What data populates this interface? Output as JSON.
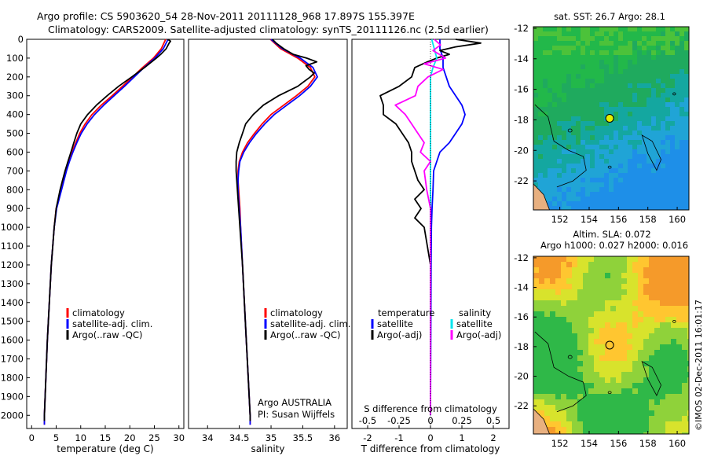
{
  "header": {
    "line1": "Argo profile: CS 5903620_54 28-Nov-2011 20111128_968 17.897S 155.397E",
    "line2": "Climatology: CARS2009. Satellite-adjusted climatology: synTS_20111126.nc (2.5d earlier)"
  },
  "colors": {
    "climatology": "#ff0000",
    "satellite": "#0000ff",
    "argo": "#000000",
    "salinity_sat": "#00e5ee",
    "salinity_argo": "#ff00ff"
  },
  "depth_axis": {
    "ticks": [
      0,
      100,
      200,
      300,
      400,
      500,
      600,
      700,
      800,
      900,
      1000,
      1100,
      1200,
      1300,
      1400,
      1500,
      1600,
      1700,
      1800,
      1900,
      2000
    ],
    "range": [
      0,
      2070
    ]
  },
  "legend_common": {
    "climatology": "climatology",
    "satellite": "satellite-adj. clim.",
    "argo": "Argo(..raw -QC)"
  },
  "chart_data": [
    {
      "id": "temperature",
      "type": "line",
      "xlabel": "temperature (deg C)",
      "xlim": [
        -1,
        31
      ],
      "xticks": [
        0,
        5,
        10,
        15,
        20,
        25,
        30
      ],
      "ylim": [
        0,
        2070
      ],
      "y_inverted": true,
      "series": [
        {
          "name": "climatology",
          "color": "#ff0000",
          "depth": [
            0,
            50,
            100,
            150,
            200,
            250,
            300,
            350,
            400,
            450,
            500,
            550,
            600,
            650,
            700,
            800,
            900,
            1000,
            1200,
            1400,
            1600,
            1800,
            2000,
            2050
          ],
          "values": [
            27.3,
            26.4,
            24.8,
            22.6,
            20.6,
            18.5,
            16.4,
            14.2,
            12.3,
            10.9,
            9.8,
            9.0,
            8.2,
            7.6,
            7.0,
            6.0,
            5.0,
            4.6,
            4.0,
            3.6,
            3.2,
            2.9,
            2.6,
            2.6
          ]
        },
        {
          "name": "satellite-adj. clim.",
          "color": "#0000ff",
          "depth": [
            0,
            50,
            100,
            150,
            200,
            250,
            300,
            350,
            400,
            450,
            500,
            550,
            600,
            650,
            700,
            800,
            900,
            1000,
            1200,
            1400,
            1600,
            1800,
            2000,
            2050
          ],
          "values": [
            27.8,
            26.8,
            25.1,
            22.9,
            20.9,
            18.9,
            16.8,
            14.7,
            12.8,
            11.3,
            10.1,
            9.2,
            8.4,
            7.7,
            7.1,
            6.1,
            5.1,
            4.6,
            4.0,
            3.6,
            3.2,
            2.9,
            2.6,
            2.6
          ]
        },
        {
          "name": "Argo(..raw -QC)",
          "color": "#000000",
          "depth": [
            0,
            10,
            20,
            50,
            80,
            100,
            150,
            200,
            250,
            300,
            350,
            400,
            450,
            500,
            550,
            600,
            650,
            700,
            750,
            800,
            850,
            900,
            950,
            1000,
            1200,
            1400,
            1600,
            1800,
            2000,
            2030
          ],
          "values": [
            27.7,
            28.3,
            28.0,
            27.4,
            26.3,
            25.4,
            23.0,
            20.4,
            17.7,
            15.4,
            13.2,
            11.4,
            10.0,
            9.2,
            8.6,
            8.0,
            7.4,
            6.8,
            6.3,
            5.8,
            5.4,
            5.0,
            4.8,
            4.6,
            4.0,
            3.6,
            3.2,
            2.9,
            2.6,
            2.6
          ]
        }
      ]
    },
    {
      "id": "salinity",
      "type": "line",
      "xlabel": "salinity",
      "xlim": [
        33.7,
        36.2
      ],
      "xticks": [
        34,
        34.5,
        35,
        35.5,
        36
      ],
      "xtick_labels": [
        "34",
        "34.5",
        "35",
        "35.5",
        "36"
      ],
      "ylim": [
        0,
        2070
      ],
      "y_inverted": true,
      "series": [
        {
          "name": "climatology",
          "color": "#ff0000",
          "depth": [
            0,
            50,
            100,
            150,
            200,
            250,
            300,
            350,
            400,
            450,
            500,
            550,
            600,
            650,
            700,
            750,
            800,
            900,
            1000,
            1200,
            1400,
            1600,
            1800,
            2000,
            2050
          ],
          "values": [
            34.99,
            35.15,
            35.42,
            35.62,
            35.69,
            35.58,
            35.4,
            35.2,
            35.0,
            34.86,
            34.74,
            34.63,
            34.55,
            34.5,
            34.48,
            34.48,
            34.49,
            34.51,
            34.52,
            34.55,
            34.58,
            34.61,
            34.64,
            34.67,
            34.67
          ]
        },
        {
          "name": "satellite-adj. clim.",
          "color": "#0000ff",
          "depth": [
            0,
            50,
            100,
            150,
            200,
            250,
            300,
            350,
            400,
            450,
            500,
            550,
            600,
            650,
            700,
            750,
            800,
            900,
            1000,
            1200,
            1400,
            1600,
            1800,
            2000,
            2050
          ],
          "values": [
            35.0,
            35.18,
            35.46,
            35.66,
            35.73,
            35.62,
            35.45,
            35.25,
            35.05,
            34.9,
            34.77,
            34.66,
            34.57,
            34.51,
            34.49,
            34.48,
            34.48,
            34.5,
            34.52,
            34.55,
            34.58,
            34.61,
            34.64,
            34.67,
            34.67
          ]
        },
        {
          "name": "Argo(..raw -QC)",
          "color": "#000000",
          "depth": [
            0,
            20,
            50,
            80,
            100,
            120,
            140,
            160,
            180,
            200,
            250,
            300,
            350,
            400,
            450,
            500,
            550,
            600,
            650,
            700,
            750,
            800,
            850,
            900,
            1000,
            1200,
            1400,
            1600,
            1800,
            2000,
            2030
          ],
          "values": [
            35.02,
            35.08,
            35.2,
            35.35,
            35.56,
            35.72,
            35.55,
            35.6,
            35.68,
            35.62,
            35.42,
            35.12,
            34.88,
            34.72,
            34.6,
            34.55,
            34.5,
            34.46,
            34.45,
            34.45,
            34.46,
            34.47,
            34.48,
            34.49,
            34.51,
            34.55,
            34.58,
            34.61,
            34.64,
            34.67,
            34.67
          ]
        }
      ]
    },
    {
      "id": "differences",
      "type": "line",
      "xlabel_top": "S difference from climatology",
      "xlabel": "T difference from climatology",
      "top_ticks": [
        -0.5,
        -0.25,
        0,
        0.25,
        0.5
      ],
      "top_tick_labels": [
        "-0.5",
        "-0.25",
        "0",
        "0.25",
        "0.5"
      ],
      "xlim": [
        -2.5,
        2.5
      ],
      "xticks": [
        -2,
        -1,
        0,
        1,
        2
      ],
      "ylim": [
        0,
        2070
      ],
      "y_inverted": true,
      "legend": {
        "temperature_title": "temperature",
        "salinity_title": "salinity",
        "t_sat": "satellite",
        "t_argo": "Argo(-adj)",
        "s_sat": "satellite",
        "s_argo": "Argo(-adj)"
      },
      "series": [
        {
          "name": "temperature satellite",
          "color": "#0000ff",
          "units": "degC",
          "depth": [
            0,
            50,
            100,
            150,
            200,
            250,
            300,
            350,
            400,
            450,
            500,
            550,
            600,
            650,
            700,
            800,
            900,
            1000,
            1200,
            1600,
            2000
          ],
          "values": [
            0.3,
            0.3,
            0.4,
            0.4,
            0.5,
            0.6,
            0.8,
            1.0,
            1.1,
            1.0,
            0.8,
            0.6,
            0.3,
            0.2,
            0.1,
            0.08,
            0.05,
            0.03,
            0.02,
            0.01,
            0.0
          ]
        },
        {
          "name": "temperature Argo(-adj)",
          "color": "#000000",
          "units": "degC",
          "depth": [
            0,
            20,
            40,
            60,
            80,
            100,
            120,
            150,
            200,
            250,
            300,
            350,
            400,
            450,
            500,
            550,
            600,
            650,
            700,
            750,
            800,
            850,
            900,
            950,
            1000,
            1100,
            1200,
            1400,
            1600,
            1800,
            2000
          ],
          "values": [
            0.8,
            1.6,
            0.8,
            0.3,
            0.6,
            0.2,
            -0.1,
            -0.5,
            -0.6,
            -1.0,
            -1.6,
            -1.5,
            -1.5,
            -1.1,
            -0.9,
            -0.7,
            -0.6,
            -0.6,
            -0.5,
            -0.4,
            -0.2,
            -0.5,
            -0.3,
            -0.5,
            -0.2,
            -0.1,
            0.0,
            0.0,
            0.0,
            0.0,
            0.0
          ]
        },
        {
          "name": "salinity satellite",
          "color": "#00e5ee",
          "units": "psu",
          "depth": [
            0,
            50,
            100,
            150,
            200,
            250,
            300,
            350,
            400,
            500,
            600,
            700,
            800,
            1000,
            1500,
            2000
          ],
          "values": [
            0.01,
            0.03,
            0.05,
            0.02,
            0.0,
            0.0,
            0.0,
            0.0,
            0.0,
            0.0,
            0.0,
            0.0,
            0.0,
            0.0,
            0.0,
            0.0
          ]
        },
        {
          "name": "salinity Argo(-adj)",
          "color": "#ff00ff",
          "units": "psu",
          "depth": [
            0,
            30,
            60,
            100,
            130,
            160,
            200,
            250,
            300,
            350,
            400,
            450,
            500,
            550,
            600,
            650,
            700,
            800,
            900,
            1000,
            1200,
            1500,
            2000
          ],
          "values": [
            0.03,
            0.08,
            0.02,
            0.12,
            -0.05,
            0.1,
            -0.02,
            -0.1,
            -0.12,
            -0.28,
            -0.2,
            -0.15,
            -0.1,
            -0.05,
            -0.08,
            0.0,
            -0.05,
            -0.03,
            0.0,
            0.0,
            0.0,
            0.0,
            0.0
          ]
        }
      ]
    },
    {
      "id": "sst_map",
      "type": "heatmap",
      "title": "sat. SST: 26.7  Argo: 28.1",
      "xlim": [
        150.2,
        160.8
      ],
      "ylim": [
        -23.9,
        -11.9
      ],
      "xticks": [
        152,
        154,
        156,
        158,
        160
      ],
      "yticks": [
        -12,
        -14,
        -16,
        -18,
        -20,
        -22
      ],
      "float_lon": 155.397,
      "float_lat": -17.897
    },
    {
      "id": "sla_map",
      "type": "heatmap",
      "title_line1": "Altim. SLA: 0.072",
      "title_line2": "Argo h1000: 0.027 h2000: 0.016",
      "xlim": [
        150.2,
        160.8
      ],
      "ylim": [
        -23.9,
        -11.9
      ],
      "xticks": [
        152,
        154,
        156,
        158,
        160
      ],
      "yticks": [
        -12,
        -14,
        -16,
        -18,
        -20,
        -22
      ],
      "float_lon": 155.397,
      "float_lat": -17.897
    }
  ],
  "annotations": {
    "agency_line1": "Argo AUSTRALIA",
    "agency_line2": "PI: Susan Wijffels",
    "credit": "©IMOS 02-Dec-2011 16:01:17"
  }
}
